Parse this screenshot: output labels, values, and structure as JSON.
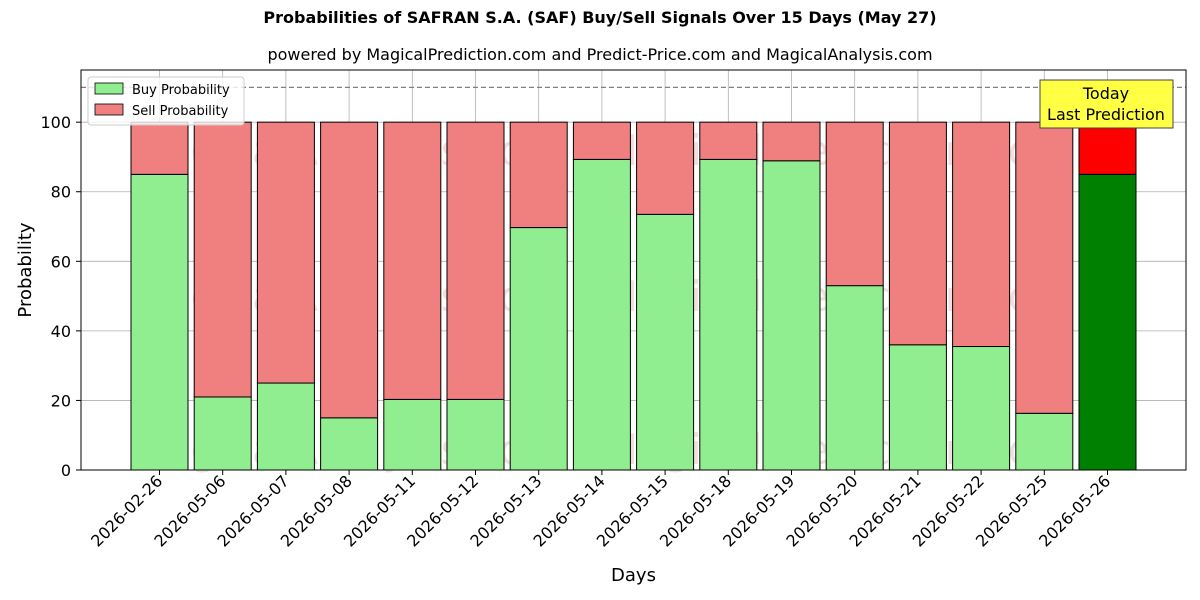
{
  "chart_data": {
    "type": "bar",
    "title": "Probabilities of SAFRAN S.A. (SAF) Buy/Sell Signals Over 15 Days (May 27)",
    "subtitle": "powered by MagicalPrediction.com and Predict-Price.com and MagicalAnalysis.com",
    "xlabel": "Days",
    "ylabel": "Probability",
    "ylim": [
      0,
      115
    ],
    "yticks": [
      0,
      20,
      40,
      60,
      80,
      100
    ],
    "grid": true,
    "stacked": true,
    "legend_position": "top-left",
    "reference_line": 110,
    "categories": [
      "2026-02-26",
      "2026-05-06",
      "2026-05-07",
      "2026-05-08",
      "2026-05-11",
      "2026-05-12",
      "2026-05-13",
      "2026-05-14",
      "2026-05-15",
      "2026-05-18",
      "2026-05-19",
      "2026-05-20",
      "2026-05-21",
      "2026-05-22",
      "2026-05-25",
      "2026-05-26"
    ],
    "series": [
      {
        "name": "Buy Probability",
        "color": "#90ee90",
        "highlight_color": "#008000",
        "values": [
          85,
          21,
          25,
          15,
          20.3,
          20.3,
          69.7,
          89.3,
          73.5,
          89.3,
          88.9,
          53,
          36,
          35.5,
          16.3,
          85
        ]
      },
      {
        "name": "Sell Probability",
        "color": "#f08080",
        "highlight_color": "#ff0000",
        "values": [
          15,
          79,
          75,
          85,
          79.7,
          79.7,
          30.3,
          10.7,
          26.5,
          10.7,
          11.1,
          47,
          64,
          64.5,
          83.7,
          15
        ]
      }
    ],
    "highlight_index": 15,
    "annotation": {
      "line1": "Today",
      "line2": "Last Prediction",
      "color": "#ffff44"
    },
    "watermarks": [
      "MagicalAnalysis.com",
      "MagicalPrediction.com"
    ]
  }
}
